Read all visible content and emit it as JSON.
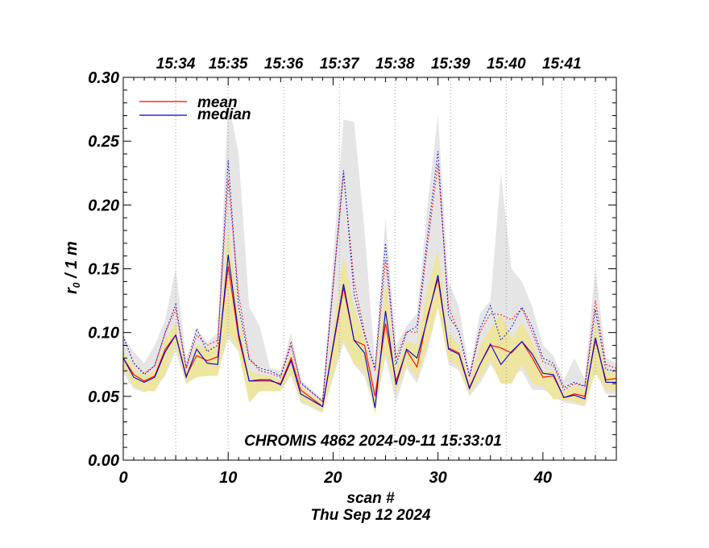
{
  "chart_data": {
    "type": "line",
    "title": "CHROMIS 4862 2024-09-11 15:33:01",
    "xlabel": "scan #",
    "date_label": "Thu Sep 12 2024",
    "ylabel_main": "r",
    "ylabel_sub": "0",
    "ylabel_suffix": " / 1 m",
    "xlim": [
      0,
      47
    ],
    "ylim": [
      0,
      0.3
    ],
    "x_ticks": [
      0,
      10,
      20,
      30,
      40
    ],
    "x_tick_labels": [
      "0",
      "10",
      "20",
      "30",
      "40"
    ],
    "y_ticks": [
      0,
      0.05,
      0.1,
      0.15,
      0.2,
      0.25,
      0.3
    ],
    "y_tick_labels": [
      "0.00",
      "0.05",
      "0.10",
      "0.15",
      "0.20",
      "0.25",
      "0.30"
    ],
    "time_markers": [
      {
        "scan": 5,
        "label": "15:34"
      },
      {
        "scan": 10,
        "label": "15:35"
      },
      {
        "scan": 15.3,
        "label": "15:36"
      },
      {
        "scan": 20.6,
        "label": "15:37"
      },
      {
        "scan": 25.9,
        "label": "15:38"
      },
      {
        "scan": 31.2,
        "label": "15:39"
      },
      {
        "scan": 36.5,
        "label": "15:40"
      },
      {
        "scan": 41.8,
        "label": "15:41"
      }
    ],
    "extra_gridlines": [
      45
    ],
    "legend": [
      {
        "name": "mean",
        "color": "#ff0000"
      },
      {
        "name": "median",
        "color": "#0000cc"
      }
    ],
    "colors": {
      "gray_band": "#e5e5e5",
      "yellow_band": "#ede5a0",
      "mean": "#ff0000",
      "median": "#0000cc"
    },
    "x": [
      0,
      1,
      2,
      3,
      4,
      5,
      6,
      7,
      8,
      9,
      10,
      11,
      12,
      13,
      14,
      15,
      16,
      16.9,
      19,
      21,
      22,
      23,
      24,
      25,
      26,
      27,
      28,
      29,
      30,
      31,
      32,
      33,
      34,
      35,
      36,
      37,
      38,
      39,
      40,
      41,
      42,
      43,
      44,
      45,
      46,
      47
    ],
    "series": [
      {
        "name": "mean",
        "style": "solid",
        "color": "#ff0000",
        "values": [
          0.08,
          0.067,
          0.062,
          0.066,
          0.087,
          0.098,
          0.066,
          0.082,
          0.078,
          0.081,
          0.152,
          0.096,
          0.062,
          0.062,
          0.062,
          0.06,
          0.08,
          0.055,
          0.042,
          0.135,
          0.094,
          0.09,
          0.05,
          0.107,
          0.062,
          0.086,
          0.073,
          0.113,
          0.142,
          0.088,
          0.084,
          0.057,
          0.075,
          0.09,
          0.088,
          0.084,
          0.093,
          0.08,
          0.065,
          0.066,
          0.049,
          0.052,
          0.05,
          0.094,
          0.063,
          0.064
        ]
      },
      {
        "name": "median",
        "style": "solid",
        "color": "#0000cc",
        "values": [
          0.08,
          0.065,
          0.061,
          0.065,
          0.085,
          0.098,
          0.065,
          0.087,
          0.076,
          0.075,
          0.161,
          0.099,
          0.062,
          0.063,
          0.063,
          0.059,
          0.078,
          0.052,
          0.042,
          0.138,
          0.094,
          0.084,
          0.041,
          0.117,
          0.059,
          0.087,
          0.08,
          0.111,
          0.145,
          0.087,
          0.083,
          0.056,
          0.075,
          0.091,
          0.075,
          0.085,
          0.093,
          0.083,
          0.068,
          0.067,
          0.049,
          0.051,
          0.048,
          0.096,
          0.061,
          0.061
        ]
      },
      {
        "name": "mean upper",
        "style": "dotted",
        "color": "#ff0000",
        "values": [
          0.097,
          0.076,
          0.068,
          0.074,
          0.1,
          0.118,
          0.072,
          0.098,
          0.09,
          0.094,
          0.22,
          0.13,
          0.08,
          0.07,
          0.068,
          0.065,
          0.093,
          0.06,
          0.046,
          0.225,
          0.14,
          0.1,
          0.07,
          0.157,
          0.08,
          0.101,
          0.1,
          0.168,
          0.232,
          0.12,
          0.1,
          0.065,
          0.1,
          0.115,
          0.114,
          0.11,
          0.119,
          0.1,
          0.077,
          0.074,
          0.055,
          0.06,
          0.058,
          0.125,
          0.075,
          0.072
        ]
      },
      {
        "name": "median upper",
        "style": "dotted",
        "color": "#0000cc",
        "values": [
          0.097,
          0.076,
          0.067,
          0.074,
          0.1,
          0.122,
          0.072,
          0.103,
          0.085,
          0.09,
          0.235,
          0.12,
          0.079,
          0.072,
          0.07,
          0.066,
          0.09,
          0.061,
          0.046,
          0.227,
          0.13,
          0.098,
          0.072,
          0.17,
          0.075,
          0.1,
          0.105,
          0.175,
          0.242,
          0.113,
          0.101,
          0.066,
          0.103,
          0.121,
          0.094,
          0.104,
          0.12,
          0.104,
          0.08,
          0.076,
          0.057,
          0.061,
          0.058,
          0.118,
          0.071,
          0.07
        ]
      },
      {
        "name": "gray band upper",
        "style": "band",
        "color": "#e5e5e5",
        "values": [
          0.097,
          0.085,
          0.076,
          0.09,
          0.11,
          0.15,
          0.08,
          0.103,
          0.092,
          0.1,
          0.282,
          0.24,
          0.12,
          0.105,
          0.072,
          0.07,
          0.1,
          0.063,
          0.048,
          0.267,
          0.265,
          0.18,
          0.075,
          0.19,
          0.09,
          0.105,
          0.115,
          0.2,
          0.27,
          0.14,
          0.12,
          0.07,
          0.115,
          0.125,
          0.225,
          0.15,
          0.14,
          0.12,
          0.09,
          0.082,
          0.063,
          0.08,
          0.063,
          0.152,
          0.08,
          0.076
        ]
      },
      {
        "name": "gray band lower",
        "style": "band",
        "color": "#e5e5e5",
        "values": [
          0.068,
          0.056,
          0.053,
          0.056,
          0.066,
          0.085,
          0.06,
          0.07,
          0.068,
          0.07,
          0.095,
          0.085,
          0.06,
          0.054,
          0.055,
          0.055,
          0.066,
          0.045,
          0.037,
          0.091,
          0.075,
          0.065,
          0.04,
          0.08,
          0.045,
          0.072,
          0.06,
          0.085,
          0.12,
          0.075,
          0.07,
          0.05,
          0.06,
          0.075,
          0.062,
          0.068,
          0.07,
          0.055,
          0.055,
          0.052,
          0.045,
          0.044,
          0.042,
          0.07,
          0.052,
          0.052
        ]
      },
      {
        "name": "yellow band upper",
        "style": "band",
        "color": "#ede5a0",
        "values": [
          0.085,
          0.073,
          0.066,
          0.07,
          0.095,
          0.108,
          0.07,
          0.09,
          0.088,
          0.09,
          0.182,
          0.115,
          0.07,
          0.067,
          0.066,
          0.063,
          0.085,
          0.058,
          0.044,
          0.16,
          0.12,
          0.095,
          0.055,
          0.14,
          0.072,
          0.093,
          0.09,
          0.135,
          0.165,
          0.1,
          0.09,
          0.061,
          0.09,
          0.103,
          0.115,
          0.095,
          0.108,
          0.092,
          0.07,
          0.07,
          0.053,
          0.058,
          0.056,
          0.11,
          0.07,
          0.068
        ]
      },
      {
        "name": "yellow band lower",
        "style": "band",
        "color": "#ede5a0",
        "values": [
          0.072,
          0.058,
          0.054,
          0.054,
          0.068,
          0.09,
          0.06,
          0.065,
          0.066,
          0.066,
          0.1,
          0.085,
          0.045,
          0.054,
          0.054,
          0.054,
          0.068,
          0.047,
          0.038,
          0.095,
          0.075,
          0.07,
          0.036,
          0.085,
          0.053,
          0.075,
          0.064,
          0.09,
          0.12,
          0.078,
          0.073,
          0.052,
          0.064,
          0.078,
          0.06,
          0.06,
          0.075,
          0.06,
          0.058,
          0.048,
          0.047,
          0.046,
          0.043,
          0.068,
          0.055,
          0.054
        ]
      }
    ]
  }
}
